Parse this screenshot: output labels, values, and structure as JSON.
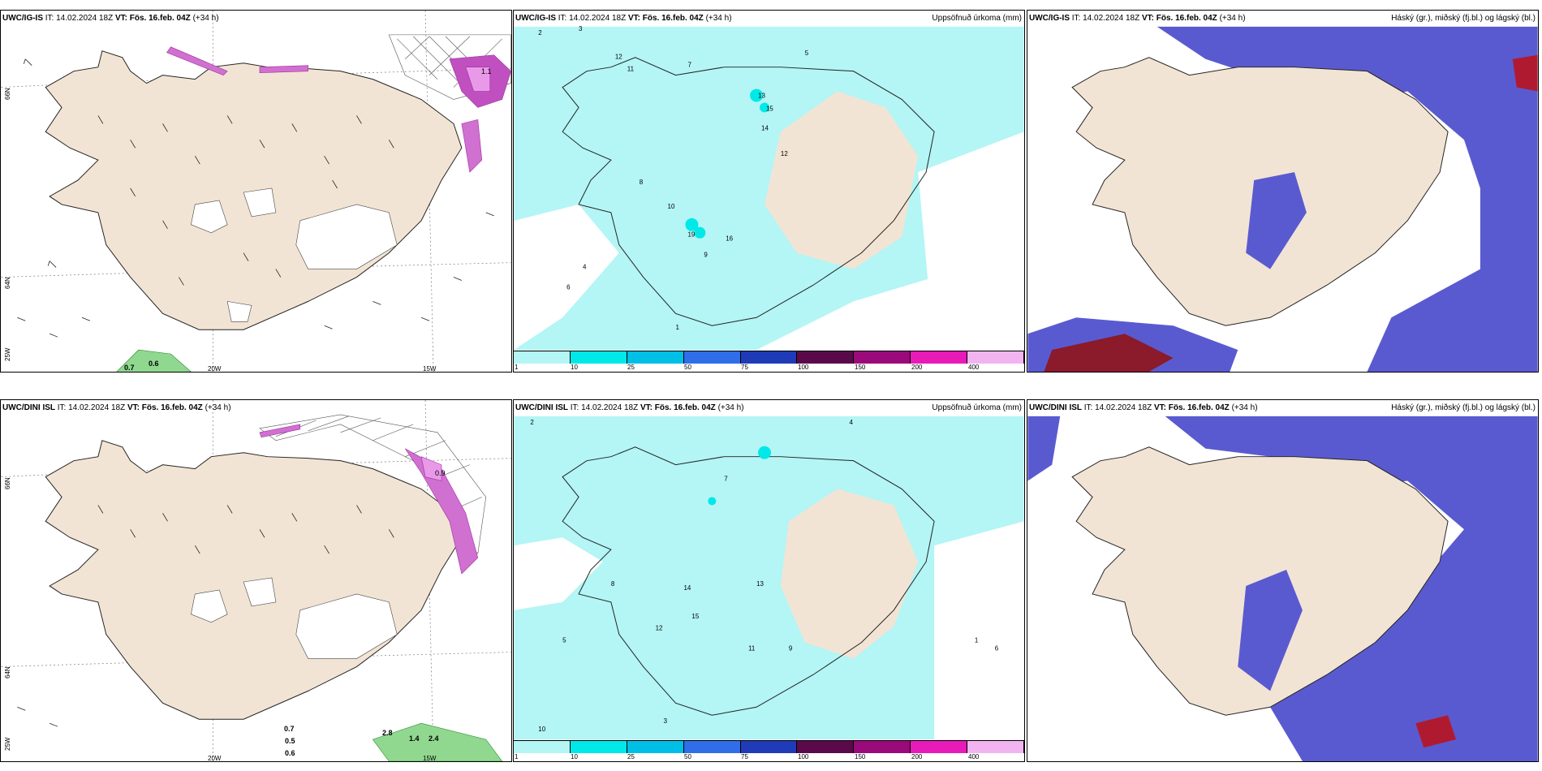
{
  "panels": [
    {
      "id": "top-left",
      "model": "UWC/IG-IS",
      "init": "IT: 14.02.2024 18Z",
      "valid": "VT: Fös. 16.feb. 04Z",
      "lead": "(+34 h)",
      "right_title": "",
      "labels": {
        "lat1": "66N",
        "lat2": "64N",
        "lat3": "25W",
        "lon1": "20W",
        "lon2": "15W"
      },
      "values": [
        {
          "v": "1.1"
        },
        {
          "v": "0.7"
        },
        {
          "v": "0.6"
        }
      ]
    },
    {
      "id": "top-middle",
      "model": "UWC/IG-IS",
      "init": "IT: 14.02.2024 18Z",
      "valid": "VT: Fös. 16.feb. 04Z",
      "lead": "(+34 h)",
      "right_title": "Uppsöfnuð úrkoma (mm)"
    },
    {
      "id": "top-right",
      "model": "UWC/IG-IS",
      "init": "IT: 14.02.2024 18Z",
      "valid": "VT: Fös. 16.feb. 04Z",
      "lead": "(+34 h)",
      "right_title": "Háský (gr.), miðský (fj.bl.) og lágský (bl.)"
    },
    {
      "id": "bottom-left",
      "model": "UWC/DINI ISL",
      "init": "IT: 14.02.2024 18Z",
      "valid": "VT: Fös. 16.feb. 04Z",
      "lead": "(+34 h)",
      "right_title": "",
      "labels": {
        "lat1": "66N",
        "lat2": "64N",
        "lat3": "25W",
        "lon1": "20W",
        "lon2": "15W"
      },
      "values": [
        {
          "v": "0.7"
        },
        {
          "v": "0.5"
        },
        {
          "v": "0.6"
        },
        {
          "v": "2.8"
        },
        {
          "v": "1.4"
        },
        {
          "v": "2.4"
        },
        {
          "v": "0.9"
        }
      ]
    },
    {
      "id": "bottom-middle",
      "model": "UWC/DINI ISL",
      "init": "IT: 14.02.2024 18Z",
      "valid": "VT: Fös. 16.feb. 04Z",
      "lead": "(+34 h)",
      "right_title": "Uppsöfnuð úrkoma (mm)"
    },
    {
      "id": "bottom-right",
      "model": "UWC/DINI ISL",
      "init": "IT: 14.02.2024 18Z",
      "valid": "VT: Fös. 16.feb. 04Z",
      "lead": "(+34 h)",
      "right_title": "Háský (gr.), miðský (fj.bl.) og lágský (bl.)"
    }
  ],
  "colorbar": {
    "ticks": [
      "1",
      "10",
      "25",
      "50",
      "75",
      "100",
      "150",
      "200",
      "400"
    ],
    "colors": [
      "#b4f5f5",
      "#00e8e8",
      "#00bfe6",
      "#2f6ee8",
      "#1f3bb8",
      "#5a0a4a",
      "#9a0a7a",
      "#e81ab8",
      "#f2b4f0"
    ]
  },
  "precip_numbers_top": [
    "2",
    "3",
    "12",
    "11",
    "7",
    "5",
    "13",
    "15",
    "14",
    "12",
    "8",
    "10",
    "19",
    "16",
    "6",
    "9",
    "4",
    "1"
  ],
  "precip_numbers_bottom": [
    "2",
    "4",
    "10",
    "12",
    "13",
    "11",
    "15",
    "6",
    "8",
    "7",
    "3",
    "5",
    "9",
    "14",
    "1"
  ],
  "colors": {
    "land": "#f2e4d4",
    "precip_light": "#b4f5f5",
    "precip_mid": "#00e8e8",
    "cloud_high": "#1f3bb8",
    "cloud_mid": "#5a5ad0",
    "red_cloud": "#8b1a2a",
    "green_precip": "#60c060"
  }
}
